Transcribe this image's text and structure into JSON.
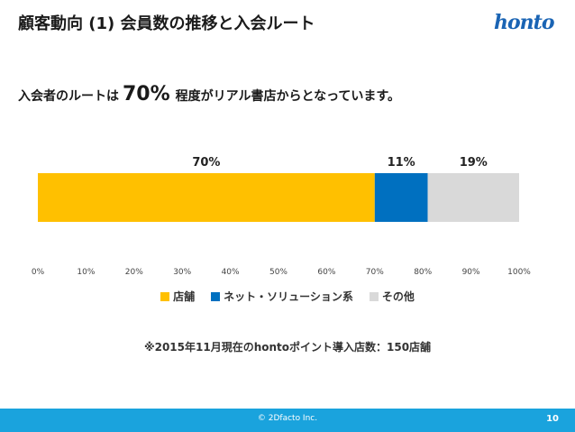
{
  "slide": {
    "title": "顧客動向 (1) 会員数の推移と入会ルート",
    "logo_text": "honto",
    "lead_prefix": "入会者のルートは",
    "lead_value": "70%",
    "lead_suffix": "程度がリアル書店からとなっています。",
    "note": "※2015年11月現在のhontoポイント導入店数：150店舗",
    "copyright": "© 2Dfacto Inc.",
    "page_number": "10"
  },
  "colors": {
    "store": "#FFC000",
    "online": "#0070C0",
    "other": "#D9D9D9",
    "footer": "#1AA3DD"
  },
  "chart_data": {
    "type": "bar",
    "orientation": "horizontal",
    "stacked": true,
    "series": [
      {
        "name": "店舗",
        "value": 70,
        "label": "70%",
        "color": "#FFC000"
      },
      {
        "name": "ネット・ソリューション系",
        "value": 11,
        "label": "11%",
        "color": "#0070C0"
      },
      {
        "name": "その他",
        "value": 19,
        "label": "19%",
        "color": "#D9D9D9"
      }
    ],
    "xlim": [
      0,
      100
    ],
    "x_ticks": [
      "0%",
      "10%",
      "20%",
      "30%",
      "40%",
      "50%",
      "60%",
      "70%",
      "80%",
      "90%",
      "100%"
    ],
    "grid": false,
    "legend_position": "bottom"
  }
}
